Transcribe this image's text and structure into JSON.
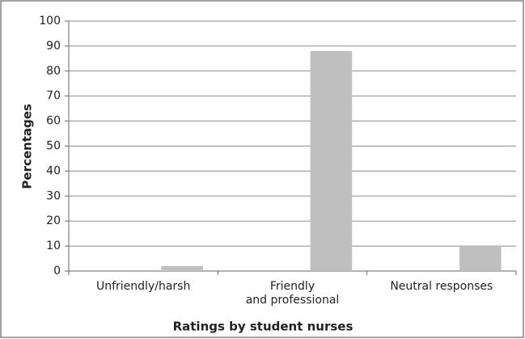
{
  "chart_data": {
    "type": "bar",
    "x_label": "Ratings by student nurses",
    "y_label": "Percentages",
    "categories": [
      "Unfriendly/harsh",
      "Friendly\nand professional",
      "Neutral responses"
    ],
    "values": [
      2,
      88,
      10
    ],
    "color": "#bfbfbf",
    "ylim": [
      0,
      100
    ],
    "yticks": [
      0,
      10,
      20,
      30,
      40,
      50,
      60,
      70,
      80,
      90,
      100
    ],
    "grid": true
  }
}
